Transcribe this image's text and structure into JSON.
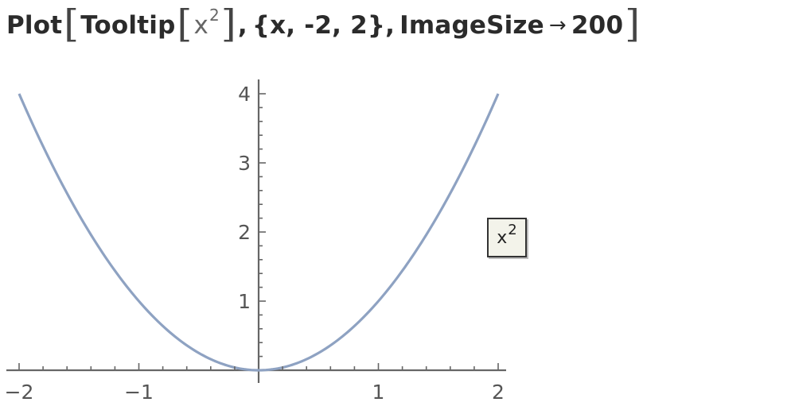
{
  "input": {
    "function": "Plot",
    "inner_function": "Tooltip",
    "arg_base": "x",
    "arg_exponent": "2",
    "range_text": "{x, -2, 2}",
    "option_name": "ImageSize",
    "option_arrow": "→",
    "option_value": "200"
  },
  "chart_data": {
    "type": "line",
    "x": [
      -2,
      -1.5,
      -1,
      -0.5,
      0,
      0.5,
      1,
      1.5,
      2
    ],
    "y": [
      4,
      2.25,
      1,
      0.25,
      0,
      0.25,
      1,
      2.25,
      4
    ],
    "function": "x^2",
    "xlim": [
      -2,
      2
    ],
    "ylim": [
      0,
      4
    ],
    "x_ticks": [
      "-2",
      "-1",
      "1",
      "2"
    ],
    "y_ticks": [
      "1",
      "2",
      "3",
      "4"
    ],
    "grid": false,
    "line_color": "#8ea2c2"
  },
  "tooltip": {
    "base": "x",
    "exponent": "2"
  }
}
